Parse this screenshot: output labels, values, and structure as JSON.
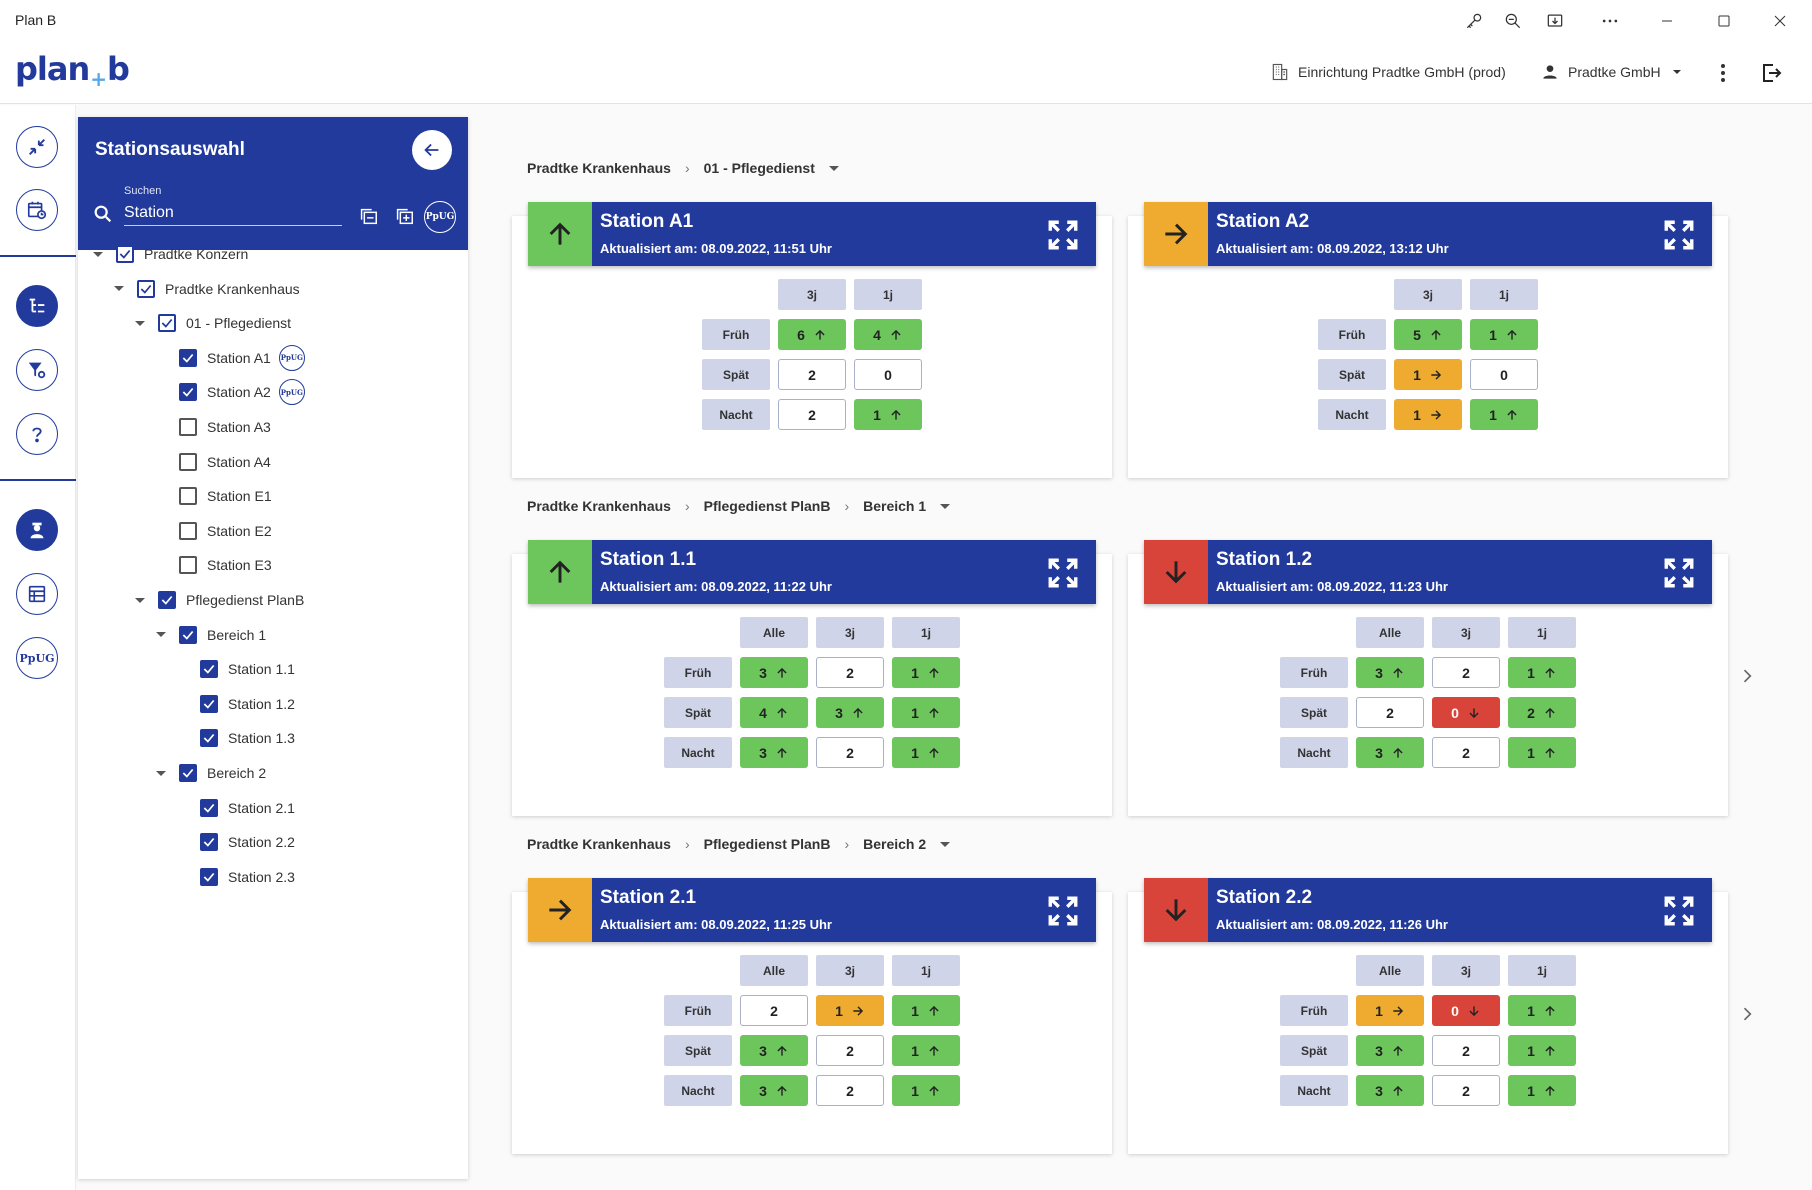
{
  "window": {
    "title": "Plan B"
  },
  "header": {
    "logo_left": "plan",
    "logo_plus": "+",
    "logo_right": "b",
    "facility": "Einrichtung Pradtke GmbH (prod)",
    "user": "Pradtke GmbH"
  },
  "panel": {
    "title": "Stationsauswahl",
    "search_label": "Suchen",
    "search_value": "Station",
    "ppug": "PpUG"
  },
  "tree": [
    {
      "label": "Pradtke Konzern",
      "state": "outline",
      "caret": true
    },
    {
      "label": "Pradtke Krankenhaus",
      "state": "outline",
      "caret": true
    },
    {
      "label": "01 - Pflegedienst",
      "state": "outline",
      "caret": true
    },
    {
      "label": "Station A1",
      "state": "checked",
      "badge": "PpUG"
    },
    {
      "label": "Station A2",
      "state": "checked",
      "badge": "PpUG"
    },
    {
      "label": "Station A3",
      "state": "unchecked"
    },
    {
      "label": "Station A4",
      "state": "unchecked"
    },
    {
      "label": "Station E1",
      "state": "unchecked"
    },
    {
      "label": "Station E2",
      "state": "unchecked"
    },
    {
      "label": "Station E3",
      "state": "unchecked"
    },
    {
      "label": "Pflegedienst PlanB",
      "state": "checked",
      "caret": true
    },
    {
      "label": "Bereich 1",
      "state": "checked",
      "caret": true
    },
    {
      "label": "Station 1.1",
      "state": "checked"
    },
    {
      "label": "Station 1.2",
      "state": "checked"
    },
    {
      "label": "Station 1.3",
      "state": "checked"
    },
    {
      "label": "Bereich 2",
      "state": "checked",
      "caret": true
    },
    {
      "label": "Station 2.1",
      "state": "checked"
    },
    {
      "label": "Station 2.2",
      "state": "checked"
    },
    {
      "label": "Station 2.3",
      "state": "checked"
    }
  ],
  "groups": [
    {
      "crumbs": [
        "Pradtke Krankenhaus",
        "01 - Pflegedienst"
      ],
      "cards": [
        {
          "title": "Station A1",
          "updated": "Aktualisiert am: 08.09.2022, 11:51 Uhr",
          "status": "green",
          "columns": [
            "3j",
            "1j"
          ],
          "rows": [
            {
              "label": "Früh",
              "cells": [
                {
                  "v": "6",
                  "c": "green",
                  "a": "up"
                },
                {
                  "v": "4",
                  "c": "green",
                  "a": "up"
                }
              ]
            },
            {
              "label": "Spät",
              "cells": [
                {
                  "v": "2",
                  "c": "white",
                  "a": ""
                },
                {
                  "v": "0",
                  "c": "white",
                  "a": ""
                }
              ]
            },
            {
              "label": "Nacht",
              "cells": [
                {
                  "v": "2",
                  "c": "white",
                  "a": ""
                },
                {
                  "v": "1",
                  "c": "green",
                  "a": "up"
                }
              ]
            }
          ]
        },
        {
          "title": "Station A2",
          "updated": "Aktualisiert am: 08.09.2022, 13:12 Uhr",
          "status": "orange",
          "columns": [
            "3j",
            "1j"
          ],
          "rows": [
            {
              "label": "Früh",
              "cells": [
                {
                  "v": "5",
                  "c": "green",
                  "a": "up"
                },
                {
                  "v": "1",
                  "c": "green",
                  "a": "up"
                }
              ]
            },
            {
              "label": "Spät",
              "cells": [
                {
                  "v": "1",
                  "c": "orange",
                  "a": "right"
                },
                {
                  "v": "0",
                  "c": "white",
                  "a": ""
                }
              ]
            },
            {
              "label": "Nacht",
              "cells": [
                {
                  "v": "1",
                  "c": "orange",
                  "a": "right"
                },
                {
                  "v": "1",
                  "c": "green",
                  "a": "up"
                }
              ]
            }
          ]
        }
      ]
    },
    {
      "crumbs": [
        "Pradtke Krankenhaus",
        "Pflegedienst PlanB",
        "Bereich 1"
      ],
      "cards": [
        {
          "title": "Station 1.1",
          "updated": "Aktualisiert am: 08.09.2022, 11:22 Uhr",
          "status": "green",
          "columns": [
            "Alle",
            "3j",
            "1j"
          ],
          "rows": [
            {
              "label": "Früh",
              "cells": [
                {
                  "v": "3",
                  "c": "green",
                  "a": "up"
                },
                {
                  "v": "2",
                  "c": "white",
                  "a": ""
                },
                {
                  "v": "1",
                  "c": "green",
                  "a": "up"
                }
              ]
            },
            {
              "label": "Spät",
              "cells": [
                {
                  "v": "4",
                  "c": "green",
                  "a": "up"
                },
                {
                  "v": "3",
                  "c": "green",
                  "a": "up"
                },
                {
                  "v": "1",
                  "c": "green",
                  "a": "up"
                }
              ]
            },
            {
              "label": "Nacht",
              "cells": [
                {
                  "v": "3",
                  "c": "green",
                  "a": "up"
                },
                {
                  "v": "2",
                  "c": "white",
                  "a": ""
                },
                {
                  "v": "1",
                  "c": "green",
                  "a": "up"
                }
              ]
            }
          ]
        },
        {
          "title": "Station 1.2",
          "updated": "Aktualisiert am: 08.09.2022, 11:23 Uhr",
          "status": "red",
          "columns": [
            "Alle",
            "3j",
            "1j"
          ],
          "rows": [
            {
              "label": "Früh",
              "cells": [
                {
                  "v": "3",
                  "c": "green",
                  "a": "up"
                },
                {
                  "v": "2",
                  "c": "white",
                  "a": ""
                },
                {
                  "v": "1",
                  "c": "green",
                  "a": "up"
                }
              ]
            },
            {
              "label": "Spät",
              "cells": [
                {
                  "v": "2",
                  "c": "white",
                  "a": ""
                },
                {
                  "v": "0",
                  "c": "red",
                  "a": "down"
                },
                {
                  "v": "2",
                  "c": "green",
                  "a": "up"
                }
              ]
            },
            {
              "label": "Nacht",
              "cells": [
                {
                  "v": "3",
                  "c": "green",
                  "a": "up"
                },
                {
                  "v": "2",
                  "c": "white",
                  "a": ""
                },
                {
                  "v": "1",
                  "c": "green",
                  "a": "up"
                }
              ]
            }
          ]
        }
      ]
    },
    {
      "crumbs": [
        "Pradtke Krankenhaus",
        "Pflegedienst PlanB",
        "Bereich 2"
      ],
      "cards": [
        {
          "title": "Station 2.1",
          "updated": "Aktualisiert am: 08.09.2022, 11:25 Uhr",
          "status": "orange",
          "columns": [
            "Alle",
            "3j",
            "1j"
          ],
          "rows": [
            {
              "label": "Früh",
              "cells": [
                {
                  "v": "2",
                  "c": "white",
                  "a": ""
                },
                {
                  "v": "1",
                  "c": "orange",
                  "a": "right"
                },
                {
                  "v": "1",
                  "c": "green",
                  "a": "up"
                }
              ]
            },
            {
              "label": "Spät",
              "cells": [
                {
                  "v": "3",
                  "c": "green",
                  "a": "up"
                },
                {
                  "v": "2",
                  "c": "white",
                  "a": ""
                },
                {
                  "v": "1",
                  "c": "green",
                  "a": "up"
                }
              ]
            },
            {
              "label": "Nacht",
              "cells": [
                {
                  "v": "3",
                  "c": "green",
                  "a": "up"
                },
                {
                  "v": "2",
                  "c": "white",
                  "a": ""
                },
                {
                  "v": "1",
                  "c": "green",
                  "a": "up"
                }
              ]
            }
          ]
        },
        {
          "title": "Station 2.2",
          "updated": "Aktualisiert am: 08.09.2022, 11:26 Uhr",
          "status": "red",
          "columns": [
            "Alle",
            "3j",
            "1j"
          ],
          "rows": [
            {
              "label": "Früh",
              "cells": [
                {
                  "v": "1",
                  "c": "orange",
                  "a": "right"
                },
                {
                  "v": "0",
                  "c": "red",
                  "a": "down"
                },
                {
                  "v": "1",
                  "c": "green",
                  "a": "up"
                }
              ]
            },
            {
              "label": "Spät",
              "cells": [
                {
                  "v": "3",
                  "c": "green",
                  "a": "up"
                },
                {
                  "v": "2",
                  "c": "white",
                  "a": ""
                },
                {
                  "v": "1",
                  "c": "green",
                  "a": "up"
                }
              ]
            },
            {
              "label": "Nacht",
              "cells": [
                {
                  "v": "3",
                  "c": "green",
                  "a": "up"
                },
                {
                  "v": "2",
                  "c": "white",
                  "a": ""
                },
                {
                  "v": "1",
                  "c": "green",
                  "a": "up"
                }
              ]
            }
          ]
        }
      ]
    }
  ],
  "colors": {
    "brand": "#213a9c",
    "green": "#6cc65c",
    "orange": "#eeab2f",
    "red": "#d9443a",
    "header_cell": "#cfd4e8"
  },
  "icons": {
    "titlebar": [
      "key-icon",
      "zoom-out-icon",
      "cast-icon",
      "more-icon",
      "minimize-icon",
      "maximize-icon",
      "close-icon"
    ],
    "rail": [
      "collapse-icon",
      "history-calendar-icon",
      "tree-view-icon",
      "filter-settings-icon",
      "help-icon",
      "nurse-icon",
      "schedule-icon",
      "ppug-icon"
    ]
  }
}
